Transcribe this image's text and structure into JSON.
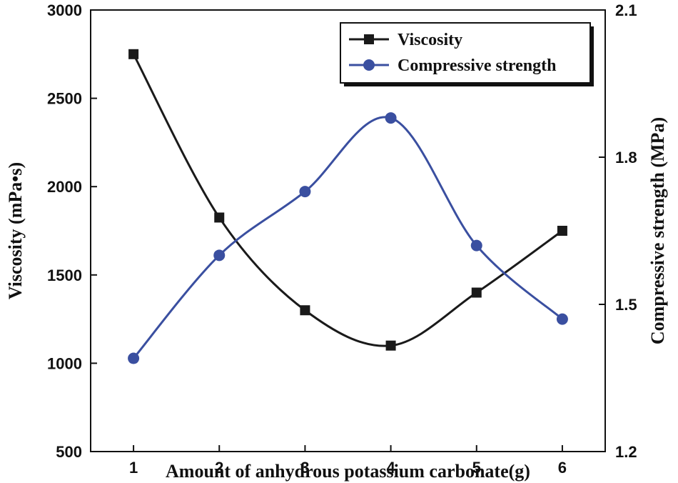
{
  "chart_data": {
    "type": "line",
    "x": [
      1,
      2,
      3,
      4,
      5,
      6
    ],
    "xlabel": "Amount of anhydrous potassium carbonate(g)",
    "x_ticks": [
      "1",
      "2",
      "3",
      "4",
      "5",
      "6"
    ],
    "xlim": [
      0.5,
      6.5
    ],
    "y_left": {
      "label": "Viscosity  (mPa•s)",
      "ticks": [
        "500",
        "1000",
        "1500",
        "2000",
        "2500",
        "3000"
      ],
      "tick_values": [
        500,
        1000,
        1500,
        2000,
        2500,
        3000
      ],
      "ylim": [
        500,
        3000
      ]
    },
    "y_right": {
      "label": "Compressive strength  (MPa)",
      "ticks": [
        "1.2",
        "1.5",
        "1.8",
        "2.1"
      ],
      "tick_values": [
        1.2,
        1.5,
        1.8,
        2.1
      ],
      "ylim": [
        1.2,
        2.1
      ]
    },
    "series": [
      {
        "name": "Viscosity",
        "axis": "left",
        "marker": "square",
        "color": "#1a1a1a",
        "values": [
          2750,
          1825,
          1300,
          1100,
          1400,
          1750
        ]
      },
      {
        "name": "Compressive strength",
        "axis": "right",
        "marker": "circle",
        "color": "#3a4fa0",
        "values": [
          1.39,
          1.6,
          1.73,
          1.88,
          1.62,
          1.47
        ]
      }
    ],
    "legend_position": "top-right",
    "grid": false
  }
}
